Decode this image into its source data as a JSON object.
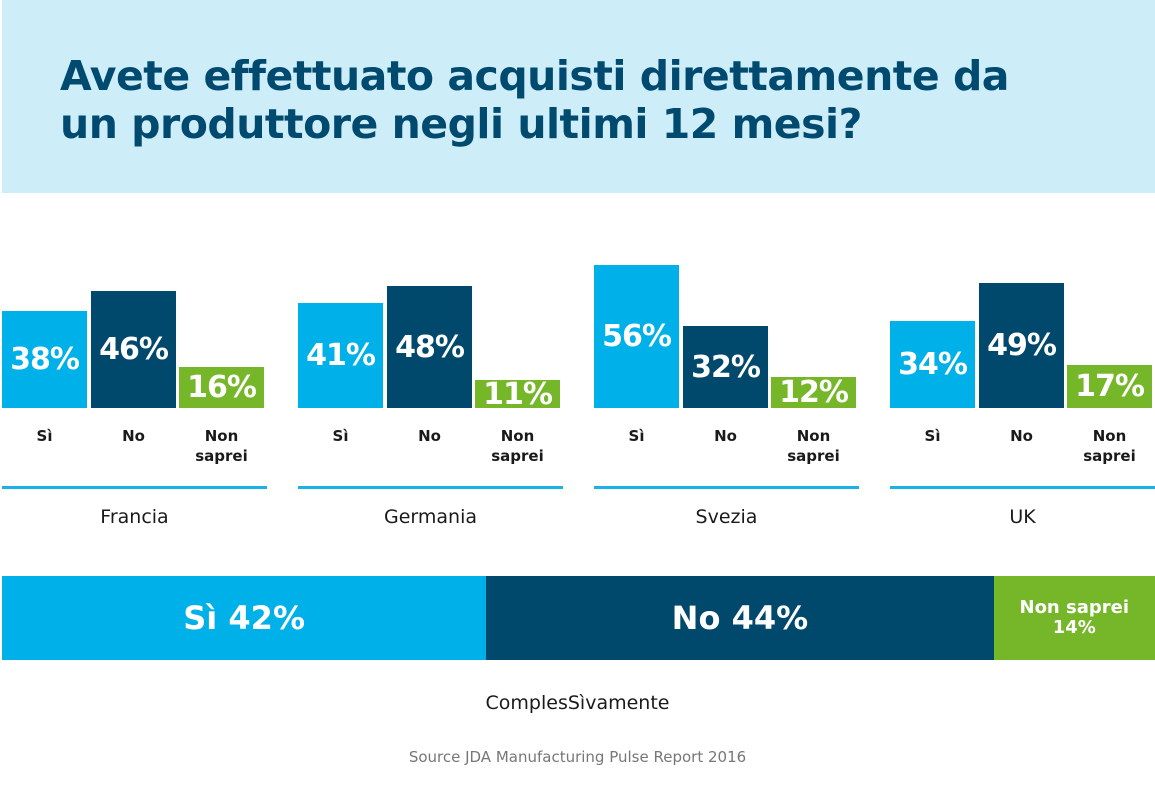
{
  "title": "Avete effettuato acquisti direttamente da un produttore negli ultimi 12 mesi?",
  "colors": {
    "si": "#00b0e8",
    "no": "#00486c",
    "non_saprei": "#76b72a",
    "header_bg": "#cdedf8"
  },
  "chart_data": [
    {
      "type": "bar",
      "categories": [
        "Sì",
        "No",
        "Non\nsaprei"
      ],
      "ylim": [
        0,
        100
      ],
      "groups": [
        {
          "country": "Francia",
          "values": [
            38,
            46,
            16
          ],
          "labels": [
            "38%",
            "46%",
            "16%"
          ]
        },
        {
          "country": "Germania",
          "values": [
            41,
            48,
            11
          ],
          "labels": [
            "41%",
            "48%",
            "11%"
          ]
        },
        {
          "country": "Svezia",
          "values": [
            56,
            32,
            12
          ],
          "labels": [
            "56%",
            "32%",
            "12%"
          ]
        },
        {
          "country": "UK",
          "values": [
            34,
            49,
            17
          ],
          "labels": [
            "34%",
            "49%",
            "17%"
          ]
        }
      ]
    },
    {
      "type": "bar",
      "stacked": true,
      "title": "ComplesSìvamente",
      "categories": [
        "Sì",
        "No",
        "Non saprei"
      ],
      "values": [
        42,
        44,
        14
      ],
      "labels": [
        "Sì 42%",
        "No 44%",
        "Non saprei\n14%"
      ]
    }
  ],
  "source": "Source JDA Manufacturing Pulse Report 2016"
}
